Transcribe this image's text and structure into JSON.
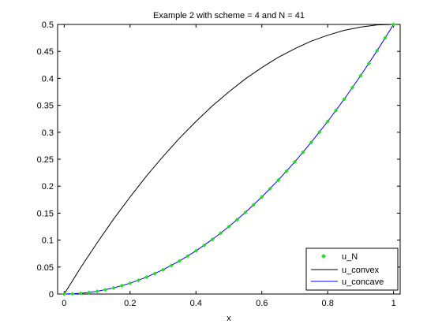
{
  "chart_data": {
    "type": "line",
    "title": "Example 2 with scheme = 4 and N = 41",
    "xlabel": "x",
    "ylabel": "",
    "xlim": [
      -0.02,
      1.02
    ],
    "ylim": [
      0,
      0.5
    ],
    "xticks": [
      "0",
      "0.2",
      "0.4",
      "0.6",
      "0.8",
      "1"
    ],
    "xtick_values": [
      0,
      0.2,
      0.4,
      0.6,
      0.8,
      1
    ],
    "yticks": [
      "0",
      "0.05",
      "0.1",
      "0.15",
      "0.2",
      "0.25",
      "0.3",
      "0.35",
      "0.4",
      "0.45",
      "0.5"
    ],
    "ytick_values": [
      0,
      0.05,
      0.1,
      0.15,
      0.2,
      0.25,
      0.3,
      0.35,
      0.4,
      0.45,
      0.5
    ],
    "grid": false,
    "legend_position": "bottom-right",
    "series": [
      {
        "name": "u_N",
        "style": "markers",
        "color": "#22dd22",
        "x": [
          0,
          0.025,
          0.05,
          0.075,
          0.1,
          0.125,
          0.15,
          0.175,
          0.2,
          0.225,
          0.25,
          0.275,
          0.3,
          0.325,
          0.35,
          0.375,
          0.4,
          0.425,
          0.45,
          0.475,
          0.5,
          0.525,
          0.55,
          0.575,
          0.6,
          0.625,
          0.65,
          0.675,
          0.7,
          0.725,
          0.75,
          0.775,
          0.8,
          0.825,
          0.85,
          0.875,
          0.9,
          0.925,
          0.95,
          0.975,
          1
        ],
        "y": [
          0,
          0.0003,
          0.0013,
          0.0028,
          0.005,
          0.0078,
          0.0113,
          0.0153,
          0.02,
          0.0253,
          0.0313,
          0.0378,
          0.045,
          0.0528,
          0.0613,
          0.0703,
          0.08,
          0.0903,
          0.1013,
          0.1128,
          0.125,
          0.1378,
          0.1513,
          0.1653,
          0.18,
          0.1953,
          0.2113,
          0.2278,
          0.245,
          0.2628,
          0.2813,
          0.3003,
          0.32,
          0.3403,
          0.3613,
          0.3828,
          0.405,
          0.4278,
          0.4513,
          0.4753,
          0.5
        ]
      },
      {
        "name": "u_convex",
        "style": "line",
        "color": "#000000",
        "x": [
          0,
          0.05,
          0.1,
          0.15,
          0.2,
          0.25,
          0.3,
          0.35,
          0.4,
          0.45,
          0.5,
          0.55,
          0.6,
          0.65,
          0.7,
          0.75,
          0.8,
          0.85,
          0.9,
          0.95,
          1
        ],
        "y": [
          0,
          0.049,
          0.095,
          0.139,
          0.18,
          0.219,
          0.255,
          0.289,
          0.32,
          0.349,
          0.375,
          0.399,
          0.42,
          0.439,
          0.455,
          0.469,
          0.48,
          0.489,
          0.495,
          0.499,
          0.5
        ]
      },
      {
        "name": "u_concave",
        "style": "line",
        "color": "#0000ff",
        "x": [
          0,
          0.05,
          0.1,
          0.15,
          0.2,
          0.25,
          0.3,
          0.35,
          0.4,
          0.45,
          0.5,
          0.55,
          0.6,
          0.65,
          0.7,
          0.75,
          0.8,
          0.85,
          0.9,
          0.95,
          1
        ],
        "y": [
          0,
          0.0013,
          0.005,
          0.0113,
          0.02,
          0.0313,
          0.045,
          0.0613,
          0.08,
          0.1013,
          0.125,
          0.1513,
          0.18,
          0.2113,
          0.245,
          0.2813,
          0.32,
          0.3613,
          0.405,
          0.4513,
          0.5
        ]
      }
    ]
  }
}
